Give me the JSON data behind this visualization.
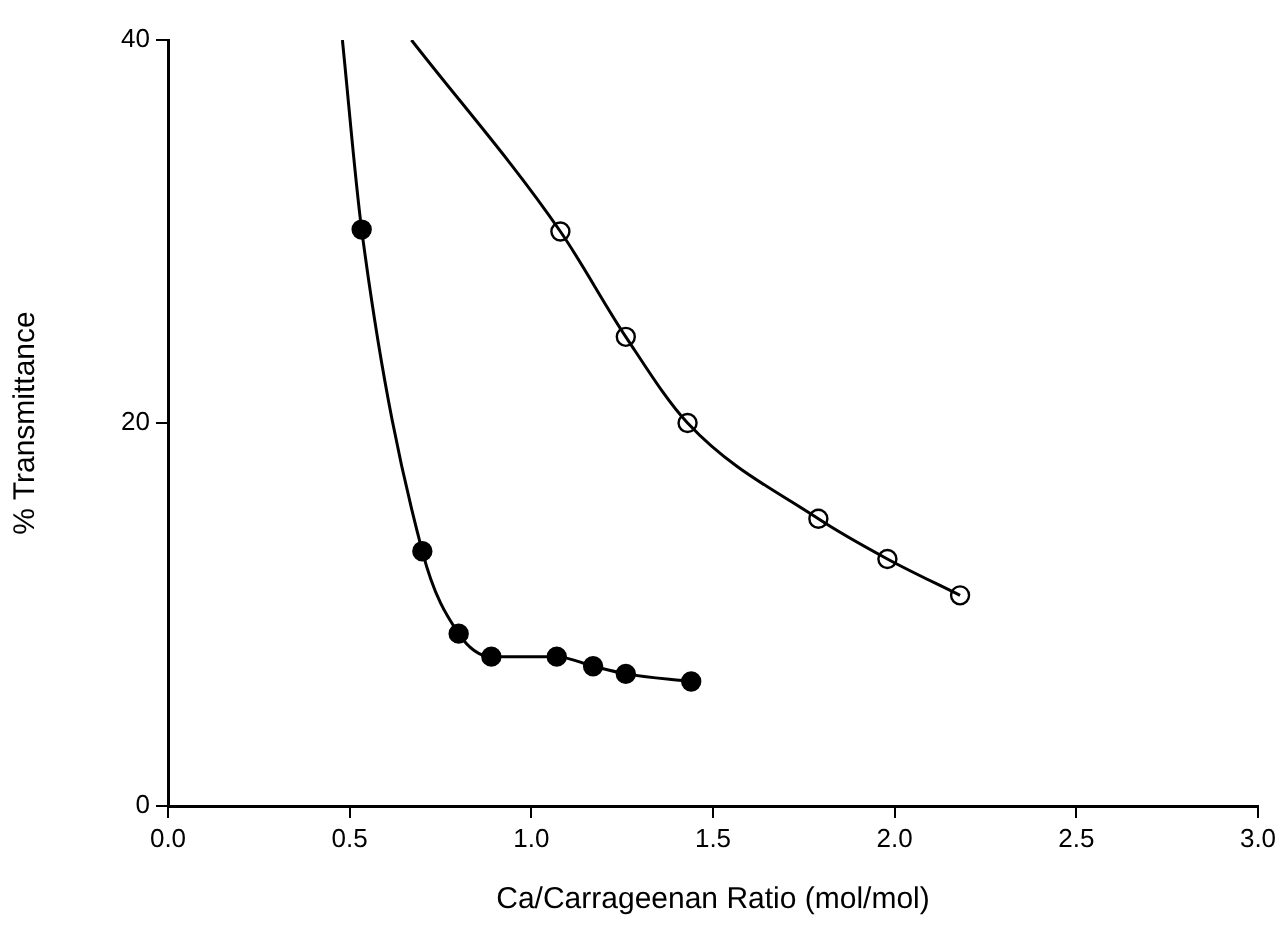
{
  "chart_data": {
    "type": "scatter",
    "xlabel": "Ca/Carrageenan Ratio (mol/mol)",
    "ylabel": "% Transmittance",
    "xlim": [
      0,
      3
    ],
    "xticks": [
      {
        "value": 0,
        "label": "0.0"
      },
      {
        "value": 0.5,
        "label": "0.5"
      },
      {
        "value": 1,
        "label": "1.0"
      },
      {
        "value": 1.5,
        "label": "1.5"
      },
      {
        "value": 2,
        "label": "2.0"
      },
      {
        "value": 2.5,
        "label": "2.5"
      },
      {
        "value": 3,
        "label": "3.0"
      }
    ],
    "ylim": [
      0,
      40
    ],
    "yticks": [
      0,
      20,
      40
    ],
    "grid": false,
    "legend": false,
    "marker": "circle",
    "series": [
      {
        "type": "line",
        "marker": "none",
        "color": "#000000",
        "x": [
          0.48,
          0.533,
          0.7,
          0.8,
          0.89,
          1.07,
          1.17,
          1.26,
          1.44
        ],
        "values": [
          40,
          30.1,
          13.3,
          9.0,
          7.8,
          7.8,
          7.3,
          6.9,
          6.5
        ]
      },
      {
        "type": "line",
        "marker": "none",
        "color": "#000000",
        "x": [
          0.67,
          1.08,
          1.26,
          1.43,
          1.79,
          1.98,
          2.18
        ],
        "values": [
          40,
          30.0,
          24.5,
          20.0,
          15.0,
          12.9,
          11.0
        ]
      },
      {
        "color": "#000000",
        "x": [
          0.533,
          0.7,
          0.8,
          0.89,
          1.07,
          1.17,
          1.26,
          1.44
        ],
        "values": [
          30.1,
          13.3,
          9.0,
          7.8,
          7.8,
          7.3,
          6.9,
          6.5
        ]
      },
      {
        "color": "#ffffff",
        "x": [
          1.08,
          1.26,
          1.43,
          1.79,
          1.98,
          2.18
        ],
        "values": [
          30.0,
          24.5,
          20.0,
          15.0,
          12.9,
          11.0
        ]
      }
    ]
  }
}
